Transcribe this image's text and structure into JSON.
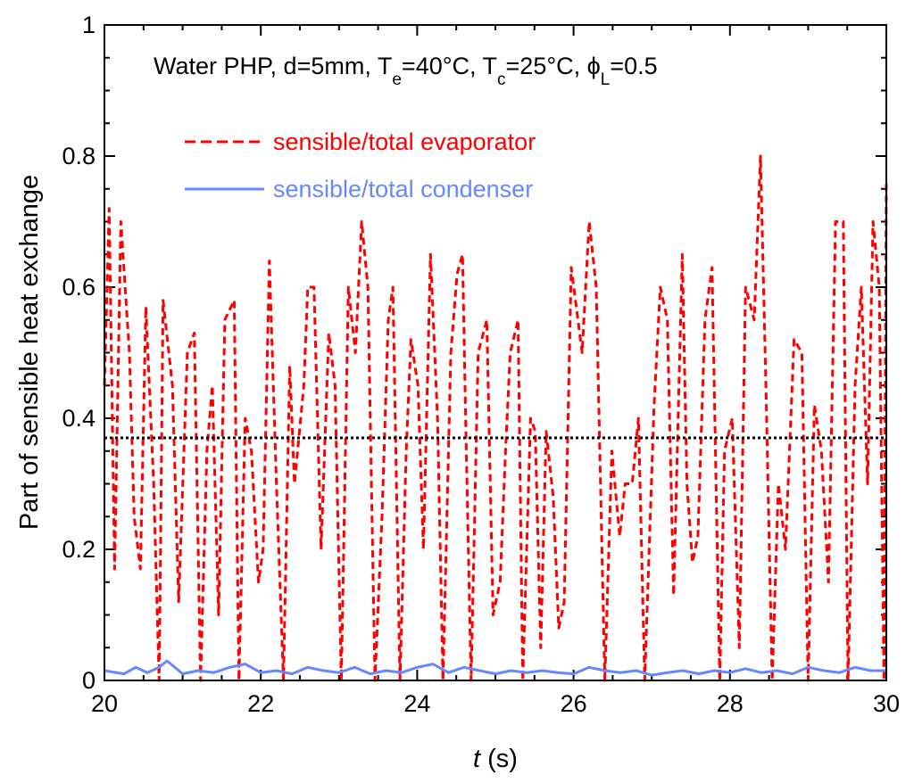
{
  "chart_data": {
    "type": "line",
    "title_parts": {
      "prefix": "Water PHP, d=5mm, T",
      "te_sub": "e",
      "te_val": "=40°C, T",
      "tc_sub": "c",
      "tc_val": "=25°C, ",
      "phi": "ϕ",
      "phi_sub": "L",
      "phi_val": "=0.5"
    },
    "xlabel_italic": "t",
    "xlabel_rest": " (s)",
    "ylabel": "Part of sensible heat exchange",
    "xlim": [
      20,
      30
    ],
    "ylim": [
      0,
      1
    ],
    "xticks": [
      "20",
      "22",
      "24",
      "26",
      "28",
      "30"
    ],
    "yticks": [
      "0",
      "0.2",
      "0.4",
      "0.6",
      "0.8",
      "1"
    ],
    "legend_position": "top-center",
    "reference_line": {
      "y": 0.37,
      "color": "#000000",
      "style": "dotted"
    },
    "series": [
      {
        "name": "sensible/total evaporator",
        "color": "#ff0000",
        "style": "dashed",
        "x": [
          20.0,
          20.06,
          20.13,
          20.21,
          20.32,
          20.38,
          20.46,
          20.53,
          20.63,
          20.7,
          20.75,
          20.87,
          20.95,
          21.06,
          21.15,
          21.23,
          21.31,
          21.38,
          21.46,
          21.54,
          21.66,
          21.72,
          21.8,
          21.88,
          21.97,
          22.03,
          22.11,
          22.2,
          22.29,
          22.37,
          22.43,
          22.55,
          22.6,
          22.68,
          22.77,
          22.87,
          22.95,
          23.03,
          23.12,
          23.21,
          23.29,
          23.37,
          23.46,
          23.55,
          23.63,
          23.69,
          23.78,
          23.86,
          23.92,
          24.01,
          24.08,
          24.17,
          24.26,
          24.33,
          24.43,
          24.51,
          24.58,
          24.62,
          24.69,
          24.78,
          24.89,
          24.97,
          25.06,
          25.13,
          25.19,
          25.29,
          25.35,
          25.45,
          25.51,
          25.58,
          25.65,
          25.74,
          25.81,
          25.88,
          25.97,
          26.11,
          26.2,
          26.29,
          26.4,
          26.49,
          26.59,
          26.66,
          26.75,
          26.83,
          26.91,
          27.03,
          27.11,
          27.2,
          27.28,
          27.39,
          27.45,
          27.52,
          27.59,
          27.68,
          27.77,
          27.87,
          27.93,
          28.03,
          28.12,
          28.2,
          28.31,
          28.39,
          28.46,
          28.54,
          28.62,
          28.71,
          28.82,
          28.92,
          29.0,
          29.08,
          29.17,
          29.26,
          29.35,
          29.45,
          29.51,
          29.6,
          29.68,
          29.76,
          29.83,
          29.91,
          29.97,
          30.0
        ],
        "y": [
          0.45,
          0.72,
          0.17,
          0.7,
          0.5,
          0.25,
          0.17,
          0.57,
          0.3,
          0.0,
          0.58,
          0.45,
          0.12,
          0.5,
          0.53,
          0.0,
          0.35,
          0.45,
          0.1,
          0.55,
          0.58,
          0.0,
          0.4,
          0.35,
          0.15,
          0.2,
          0.64,
          0.3,
          0.0,
          0.48,
          0.3,
          0.45,
          0.6,
          0.6,
          0.2,
          0.53,
          0.45,
          0.0,
          0.6,
          0.5,
          0.7,
          0.6,
          0.0,
          0.25,
          0.55,
          0.6,
          0.0,
          0.35,
          0.52,
          0.45,
          0.2,
          0.65,
          0.4,
          0.0,
          0.5,
          0.62,
          0.65,
          0.4,
          0.0,
          0.5,
          0.55,
          0.1,
          0.15,
          0.35,
          0.5,
          0.55,
          0.0,
          0.4,
          0.38,
          0.05,
          0.38,
          0.28,
          0.08,
          0.12,
          0.63,
          0.5,
          0.7,
          0.6,
          0.0,
          0.35,
          0.22,
          0.3,
          0.3,
          0.4,
          0.0,
          0.42,
          0.6,
          0.55,
          0.13,
          0.65,
          0.3,
          0.18,
          0.22,
          0.55,
          0.63,
          0.0,
          0.35,
          0.4,
          0.05,
          0.6,
          0.55,
          0.8,
          0.45,
          0.0,
          0.3,
          0.2,
          0.52,
          0.5,
          0.0,
          0.42,
          0.35,
          0.15,
          0.7,
          0.7,
          0.0,
          0.45,
          0.6,
          0.3,
          0.7,
          0.6,
          0.0,
          0.76
        ]
      },
      {
        "name": "sensible/total condenser",
        "color": "#6688ff",
        "style": "solid",
        "x": [
          20.0,
          20.25,
          20.4,
          20.55,
          20.7,
          20.8,
          20.85,
          21.0,
          21.2,
          21.4,
          21.6,
          21.8,
          22.0,
          22.2,
          22.4,
          22.6,
          22.8,
          23.0,
          23.2,
          23.4,
          23.6,
          23.8,
          24.0,
          24.2,
          24.4,
          24.6,
          24.8,
          25.0,
          25.2,
          25.4,
          25.6,
          25.8,
          26.0,
          26.2,
          26.4,
          26.6,
          26.8,
          27.0,
          27.2,
          27.4,
          27.6,
          27.8,
          28.0,
          28.2,
          28.4,
          28.6,
          28.8,
          29.0,
          29.2,
          29.4,
          29.6,
          29.8,
          30.0
        ],
        "y": [
          0.015,
          0.01,
          0.02,
          0.012,
          0.02,
          0.03,
          0.025,
          0.01,
          0.015,
          0.012,
          0.02,
          0.025,
          0.012,
          0.015,
          0.01,
          0.02,
          0.015,
          0.012,
          0.02,
          0.01,
          0.015,
          0.012,
          0.02,
          0.025,
          0.012,
          0.02,
          0.015,
          0.01,
          0.015,
          0.012,
          0.015,
          0.012,
          0.01,
          0.02,
          0.015,
          0.012,
          0.015,
          0.008,
          0.012,
          0.015,
          0.01,
          0.015,
          0.012,
          0.018,
          0.012,
          0.015,
          0.01,
          0.02,
          0.015,
          0.012,
          0.02,
          0.015,
          0.015
        ]
      }
    ]
  }
}
